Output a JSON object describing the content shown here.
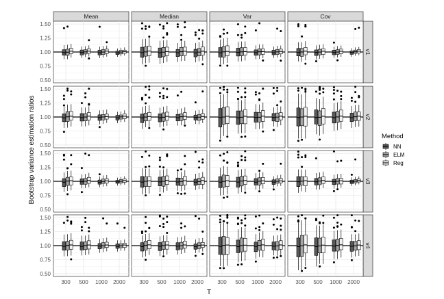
{
  "chart_data": {
    "type": "boxplot",
    "ylabel": "Bootstrap variance estimation ratios",
    "xlabel": "T",
    "reference_line": 1.0,
    "ylim": [
      0.45,
      1.55
    ],
    "yticks": [
      "0.50",
      "0.75",
      "1.00",
      "1.25",
      "1.50"
    ],
    "categories": [
      "300",
      "500",
      "1000",
      "2000"
    ],
    "facet_cols": [
      "Mean",
      "Median",
      "Var",
      "Cov"
    ],
    "facet_rows": [
      "v1",
      "v2",
      "v3",
      "v4"
    ],
    "legend": {
      "title": "Method",
      "position": "right",
      "items": [
        {
          "name": "NN",
          "color": "#595959"
        },
        {
          "name": "ELM",
          "color": "#a6a6a6"
        },
        {
          "name": "Reg",
          "color": "#f2f2f2"
        }
      ]
    },
    "grid": true,
    "spread": {
      "description": "approximate half-width of the interquartile box read from the figure, by row/column, for T=300,500,1000,2000",
      "v1": {
        "Mean": [
          0.05,
          0.04,
          0.04,
          0.03
        ],
        "Median": [
          0.09,
          0.08,
          0.07,
          0.07
        ],
        "Var": [
          0.09,
          0.07,
          0.05,
          0.04
        ],
        "Cov": [
          0.07,
          0.05,
          0.04,
          0.03
        ]
      },
      "v2": {
        "Mean": [
          0.08,
          0.07,
          0.05,
          0.04
        ],
        "Median": [
          0.08,
          0.07,
          0.06,
          0.05
        ],
        "Var": [
          0.15,
          0.12,
          0.09,
          0.07
        ],
        "Cov": [
          0.16,
          0.13,
          0.1,
          0.08
        ]
      },
      "v3": {
        "Mean": [
          0.07,
          0.05,
          0.04,
          0.03
        ],
        "Median": [
          0.09,
          0.08,
          0.07,
          0.06
        ],
        "Var": [
          0.1,
          0.08,
          0.06,
          0.04
        ],
        "Cov": [
          0.08,
          0.06,
          0.05,
          0.03
        ]
      },
      "v4": {
        "Mean": [
          0.08,
          0.07,
          0.05,
          0.04
        ],
        "Median": [
          0.08,
          0.07,
          0.06,
          0.05
        ],
        "Var": [
          0.15,
          0.12,
          0.09,
          0.07
        ],
        "Cov": [
          0.17,
          0.14,
          0.1,
          0.08
        ]
      }
    }
  }
}
